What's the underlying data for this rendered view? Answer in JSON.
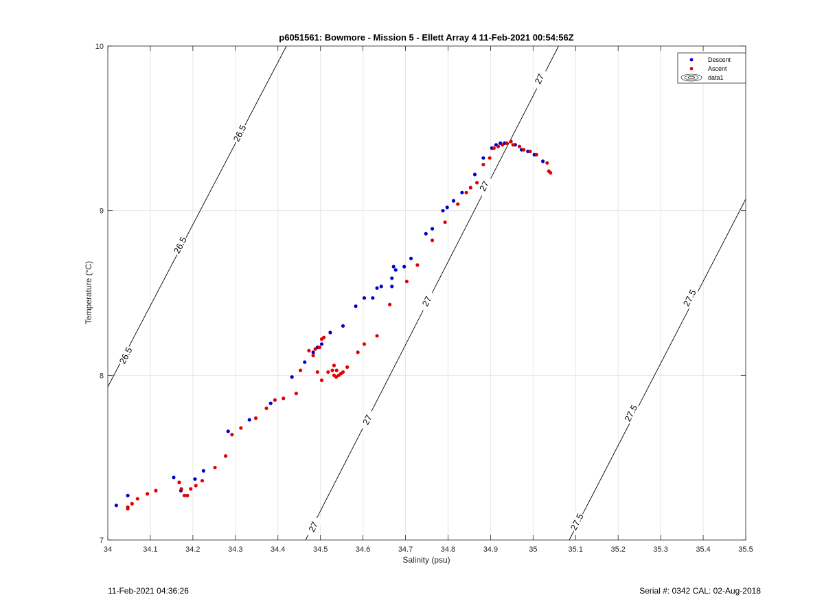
{
  "footer": {
    "left": "11-Feb-2021 04:36:26",
    "right": "Serial #: 0342  CAL: 02-Aug-2018"
  },
  "chart_data": {
    "type": "scatter",
    "title": "p6051561: Bowmore - Mission 5 - Ellett Array 4 11-Feb-2021 00:54:56Z",
    "xlabel": "Salinity (psu)",
    "ylabel": "Temperature (°C)",
    "xlim": [
      34.0,
      35.5
    ],
    "ylim": [
      7,
      10
    ],
    "xticks": [
      34,
      34.1,
      34.2,
      34.3,
      34.4,
      34.5,
      34.6,
      34.7,
      34.8,
      34.9,
      35,
      35.1,
      35.2,
      35.3,
      35.4,
      35.5
    ],
    "xtick_labels": [
      "34",
      "34.1",
      "34.2",
      "34.3",
      "34.4",
      "34.5",
      "34.6",
      "34.7",
      "34.8",
      "34.9",
      "35",
      "35.1",
      "35.2",
      "35.3",
      "35.4",
      "35.5"
    ],
    "yticks": [
      7,
      8,
      9,
      10
    ],
    "ytick_labels": [
      "7",
      "8",
      "9",
      "10"
    ],
    "grid": true,
    "legend_position": "top-right",
    "legend": [
      "Descent",
      "Ascent",
      "data1"
    ],
    "series": [
      {
        "name": "Descent",
        "color": "#0000cc",
        "points": [
          [
            34.02,
            7.21
          ],
          [
            34.047,
            7.27
          ],
          [
            34.155,
            7.38
          ],
          [
            34.168,
            7.35
          ],
          [
            34.172,
            7.3
          ],
          [
            34.205,
            7.37
          ],
          [
            34.225,
            7.42
          ],
          [
            34.283,
            7.66
          ],
          [
            34.333,
            7.73
          ],
          [
            34.383,
            7.83
          ],
          [
            34.433,
            7.99
          ],
          [
            34.463,
            8.08
          ],
          [
            34.483,
            8.14
          ],
          [
            34.493,
            8.17
          ],
          [
            34.503,
            8.19
          ],
          [
            34.523,
            8.26
          ],
          [
            34.553,
            8.3
          ],
          [
            34.583,
            8.42
          ],
          [
            34.603,
            8.47
          ],
          [
            34.623,
            8.47
          ],
          [
            34.633,
            8.53
          ],
          [
            34.643,
            8.54
          ],
          [
            34.668,
            8.54
          ],
          [
            34.668,
            8.59
          ],
          [
            34.672,
            8.66
          ],
          [
            34.677,
            8.64
          ],
          [
            34.697,
            8.66
          ],
          [
            34.713,
            8.71
          ],
          [
            34.748,
            8.86
          ],
          [
            34.763,
            8.89
          ],
          [
            34.788,
            9.0
          ],
          [
            34.798,
            9.02
          ],
          [
            34.813,
            9.06
          ],
          [
            34.833,
            9.11
          ],
          [
            34.863,
            9.22
          ],
          [
            34.883,
            9.32
          ],
          [
            34.903,
            9.38
          ],
          [
            34.913,
            9.4
          ],
          [
            34.923,
            9.41
          ],
          [
            34.933,
            9.41
          ],
          [
            34.958,
            9.4
          ],
          [
            34.973,
            9.37
          ],
          [
            34.988,
            9.36
          ],
          [
            35.003,
            9.34
          ],
          [
            35.023,
            9.3
          ]
        ]
      },
      {
        "name": "Ascent",
        "color": "#e00000",
        "points": [
          [
            34.047,
            7.2
          ],
          [
            34.047,
            7.19
          ],
          [
            34.057,
            7.22
          ],
          [
            34.07,
            7.25
          ],
          [
            34.093,
            7.28
          ],
          [
            34.113,
            7.3
          ],
          [
            34.168,
            7.35
          ],
          [
            34.173,
            7.31
          ],
          [
            34.18,
            7.27
          ],
          [
            34.187,
            7.27
          ],
          [
            34.195,
            7.31
          ],
          [
            34.207,
            7.33
          ],
          [
            34.222,
            7.36
          ],
          [
            34.252,
            7.44
          ],
          [
            34.277,
            7.51
          ],
          [
            34.292,
            7.64
          ],
          [
            34.313,
            7.68
          ],
          [
            34.348,
            7.74
          ],
          [
            34.373,
            7.8
          ],
          [
            34.393,
            7.85
          ],
          [
            34.413,
            7.86
          ],
          [
            34.443,
            7.89
          ],
          [
            34.453,
            8.03
          ],
          [
            34.473,
            8.15
          ],
          [
            34.483,
            8.12
          ],
          [
            34.488,
            8.16
          ],
          [
            34.498,
            8.17
          ],
          [
            34.503,
            8.22
          ],
          [
            34.508,
            8.23
          ],
          [
            34.493,
            8.02
          ],
          [
            34.503,
            7.97
          ],
          [
            34.518,
            8.02
          ],
          [
            34.528,
            8.03
          ],
          [
            34.532,
            8.06
          ],
          [
            34.538,
            8.03
          ],
          [
            34.532,
            8.0
          ],
          [
            34.537,
            7.99
          ],
          [
            34.543,
            8.0
          ],
          [
            34.548,
            8.01
          ],
          [
            34.553,
            8.02
          ],
          [
            34.563,
            8.05
          ],
          [
            34.588,
            8.14
          ],
          [
            34.603,
            8.19
          ],
          [
            34.633,
            8.24
          ],
          [
            34.663,
            8.43
          ],
          [
            34.703,
            8.57
          ],
          [
            34.728,
            8.67
          ],
          [
            34.763,
            8.82
          ],
          [
            34.793,
            8.93
          ],
          [
            34.823,
            9.04
          ],
          [
            34.843,
            9.11
          ],
          [
            34.853,
            9.14
          ],
          [
            34.868,
            9.17
          ],
          [
            34.883,
            9.28
          ],
          [
            34.898,
            9.32
          ],
          [
            34.908,
            9.38
          ],
          [
            34.918,
            9.39
          ],
          [
            34.928,
            9.4
          ],
          [
            34.938,
            9.41
          ],
          [
            34.948,
            9.42
          ],
          [
            34.953,
            9.4
          ],
          [
            34.968,
            9.39
          ],
          [
            34.978,
            9.37
          ],
          [
            34.993,
            9.36
          ],
          [
            35.008,
            9.34
          ],
          [
            35.033,
            9.29
          ],
          [
            35.037,
            9.24
          ],
          [
            35.041,
            9.23
          ]
        ]
      }
    ],
    "contours": [
      {
        "level": "26.5",
        "points": [
          [
            34.0,
            7.93
          ],
          [
            34.42,
            10.0
          ]
        ],
        "labels": [
          [
            34.042,
            8.12
          ],
          [
            34.17,
            8.79
          ],
          [
            34.31,
            9.47
          ]
        ]
      },
      {
        "level": "27",
        "points": [
          [
            34.465,
            7.0
          ],
          [
            35.06,
            10.0
          ]
        ],
        "labels": [
          [
            34.483,
            7.08
          ],
          [
            34.61,
            7.73
          ],
          [
            34.75,
            8.45
          ],
          [
            34.885,
            9.15
          ],
          [
            35.015,
            9.8
          ]
        ]
      },
      {
        "level": "27.5",
        "points": [
          [
            35.085,
            7.0
          ],
          [
            35.5,
            9.07
          ]
        ],
        "labels": [
          [
            35.103,
            7.11
          ],
          [
            35.23,
            7.77
          ],
          [
            35.368,
            8.47
          ]
        ]
      }
    ]
  }
}
